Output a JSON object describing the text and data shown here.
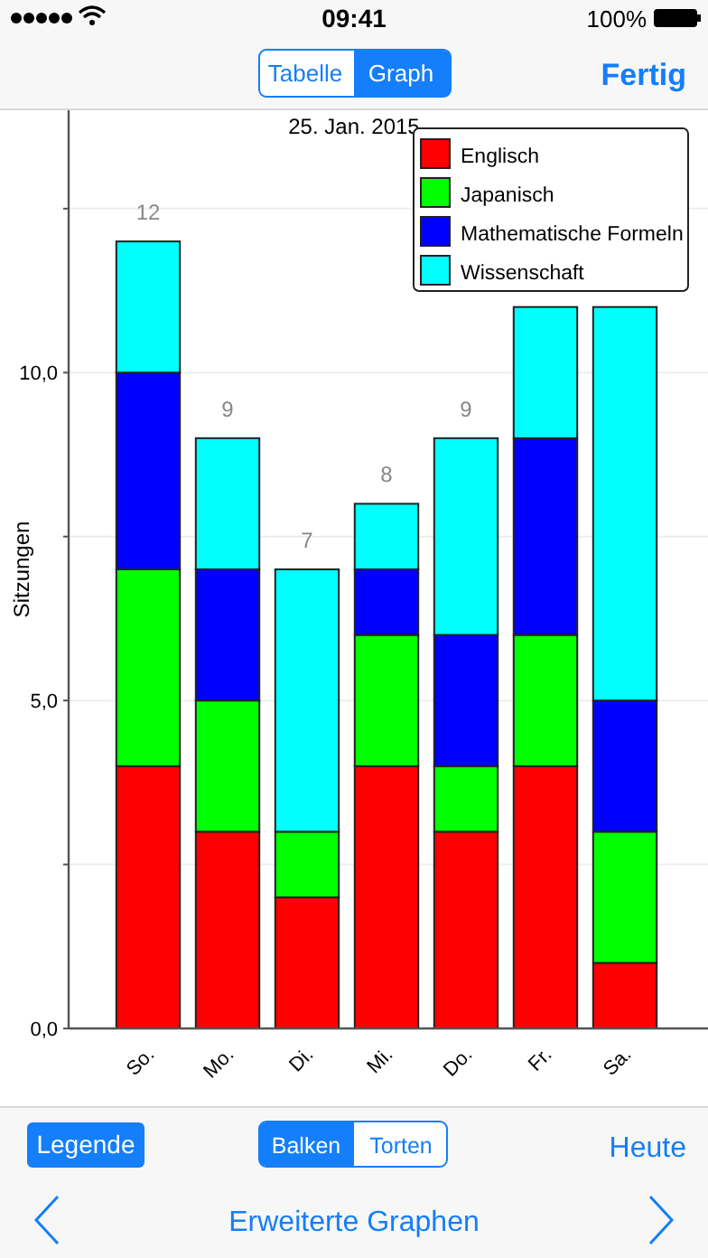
{
  "chart_data": {
    "type": "bar",
    "title": "25. Jan. 2015",
    "ylabel": "Sitzungen",
    "stacked": true,
    "categories": [
      "So.",
      "Mo.",
      "Di.",
      "Mi.",
      "Do.",
      "Fr.",
      "Sa."
    ],
    "series": [
      {
        "name": "Englisch",
        "color": "#ff0000",
        "values": [
          4,
          3,
          2,
          4,
          3,
          4,
          1
        ]
      },
      {
        "name": "Japanisch",
        "color": "#00ff00",
        "values": [
          3,
          2,
          1,
          2,
          1,
          2,
          2
        ]
      },
      {
        "name": "Mathematische Formeln",
        "color": "#0000ff",
        "values": [
          3,
          2,
          0,
          1,
          2,
          3,
          2
        ]
      },
      {
        "name": "Wissenschaft",
        "color": "#00ffff",
        "values": [
          2,
          2,
          4,
          1,
          3,
          2,
          6
        ]
      }
    ],
    "totals": [
      "12",
      "9",
      "7",
      "8",
      "9",
      null,
      null
    ],
    "ylim": [
      0,
      14
    ],
    "yticks": [
      {
        "value": 0,
        "label": "0,0"
      },
      {
        "value": 2.5,
        "label": null
      },
      {
        "value": 5,
        "label": "5,0"
      },
      {
        "value": 7.5,
        "label": null
      },
      {
        "value": 10,
        "label": "10,0"
      },
      {
        "value": 12.5,
        "label": null
      }
    ],
    "grid": "y",
    "legend": "top right",
    "annotations": [
      "09:41",
      "100%",
      "Tabelle",
      "Graph",
      "Fertig",
      "Legende",
      "Balken",
      "Torten",
      "Heute",
      "Erweiterte Graphen"
    ]
  }
}
